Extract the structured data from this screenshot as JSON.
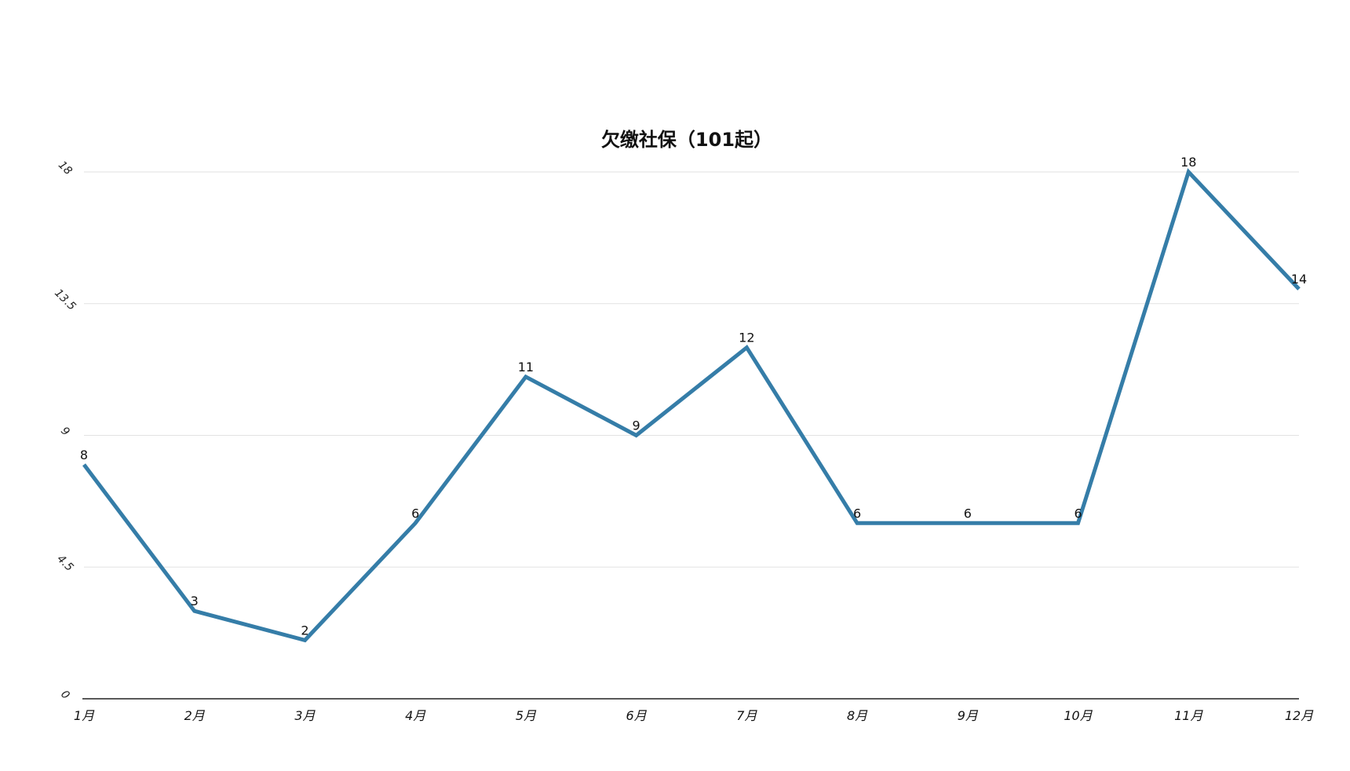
{
  "chart_data": {
    "type": "line",
    "title": "欠缴社保（101起）",
    "xlabel": "",
    "ylabel": "",
    "categories": [
      "1月",
      "2月",
      "3月",
      "4月",
      "5月",
      "6月",
      "7月",
      "8月",
      "9月",
      "10月",
      "11月",
      "12月"
    ],
    "series": [
      {
        "values": [
          8,
          3,
          2,
          6,
          11,
          9,
          12,
          6,
          6,
          6,
          18,
          14
        ],
        "color": "#357da8"
      }
    ],
    "ylim": [
      0,
      18
    ],
    "yticks": [
      0,
      4.5,
      9,
      13.5,
      18
    ],
    "ytick_labels": [
      "0",
      "4.5",
      "9",
      "13.5",
      "18"
    ],
    "grid": true,
    "legend": "none"
  }
}
